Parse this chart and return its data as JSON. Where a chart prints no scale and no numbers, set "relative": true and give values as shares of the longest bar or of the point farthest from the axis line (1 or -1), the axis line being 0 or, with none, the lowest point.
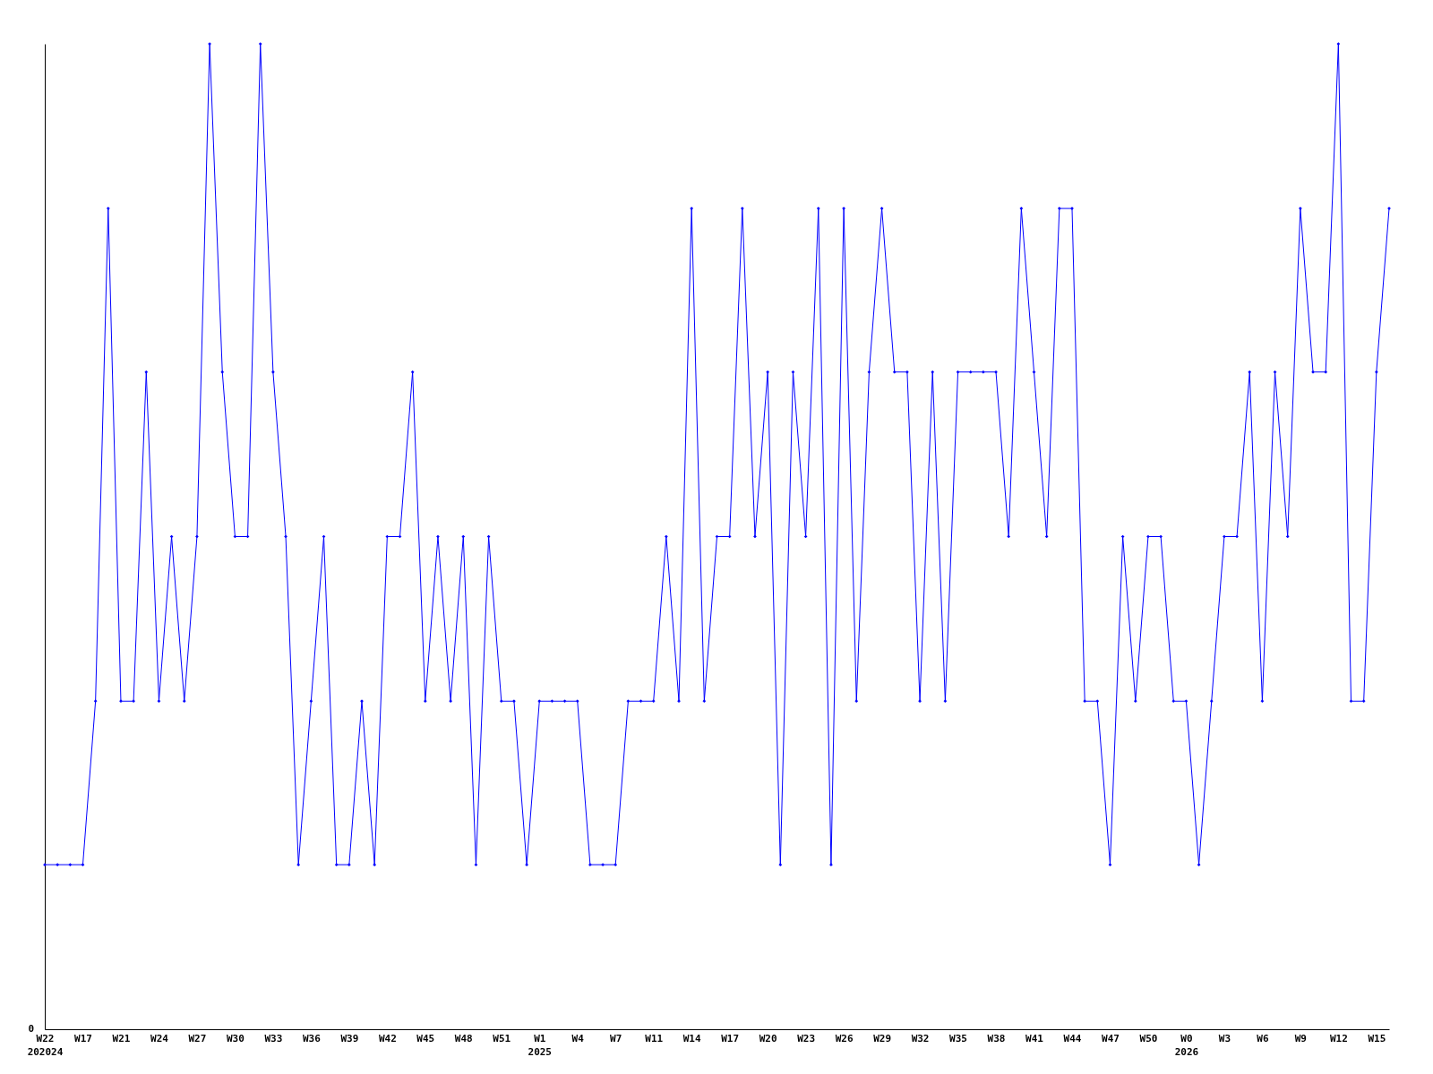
{
  "chart_data": {
    "type": "line",
    "relative": true,
    "marker": "diamond",
    "annotations": [
      "0"
    ],
    "categories": [
      "W22\n202024",
      null,
      null,
      "W17",
      null,
      null,
      "W21",
      null,
      null,
      "W24",
      null,
      null,
      "W27",
      null,
      null,
      "W30",
      null,
      null,
      "W33",
      null,
      null,
      "W36",
      null,
      null,
      "W39",
      null,
      null,
      "W42",
      null,
      null,
      "W45",
      null,
      null,
      "W48",
      null,
      null,
      "W51",
      null,
      null,
      "W1\n2025",
      null,
      null,
      "W4",
      null,
      null,
      "W7",
      null,
      null,
      "W11",
      null,
      null,
      "W14",
      null,
      null,
      "W17",
      null,
      null,
      "W20",
      null,
      null,
      "W23",
      null,
      null,
      "W26",
      null,
      null,
      "W29",
      null,
      null,
      "W32",
      null,
      null,
      "W35",
      null,
      null,
      "W38",
      null,
      null,
      "W41",
      null,
      null,
      "W44",
      null,
      null,
      "W47",
      null,
      null,
      "W50",
      null,
      null,
      "W0\n2026",
      null,
      null,
      "W3",
      null,
      null,
      "W6",
      null,
      null,
      "W9",
      null,
      null,
      "W12",
      null,
      null,
      "W15",
      null
    ],
    "series": [
      {
        "color": "#0000ff",
        "values": [
          0.167,
          0.167,
          0.167,
          0.167,
          0.333,
          0.833,
          0.333,
          0.333,
          0.667,
          0.333,
          0.5,
          0.333,
          0.5,
          1,
          0.667,
          0.5,
          0.5,
          1,
          0.667,
          0.5,
          0.167,
          0.333,
          0.5,
          0.167,
          0.167,
          0.333,
          0.167,
          0.5,
          0.5,
          0.667,
          0.333,
          0.5,
          0.333,
          0.5,
          0.167,
          0.5,
          0.333,
          0.333,
          0.167,
          0.333,
          0.333,
          0.333,
          0.333,
          0.167,
          0.167,
          0.167,
          0.333,
          0.333,
          0.333,
          0.5,
          0.333,
          0.833,
          0.333,
          0.5,
          0.5,
          0.833,
          0.5,
          0.667,
          0.167,
          0.667,
          0.5,
          0.833,
          0.167,
          0.833,
          0.333,
          0.667,
          0.833,
          0.667,
          0.667,
          0.333,
          0.667,
          0.333,
          0.667,
          0.667,
          0.667,
          0.667,
          0.5,
          0.833,
          0.667,
          0.5,
          0.833,
          0.833,
          0.333,
          0.333,
          0.167,
          0.5,
          0.333,
          0.5,
          0.5,
          0.333,
          0.333,
          0.167,
          0.333,
          0.5,
          0.5,
          0.667,
          0.333,
          0.667,
          0.5,
          0.833,
          0.667,
          0.667,
          1,
          0.333,
          0.333,
          0.667,
          0.833
        ]
      }
    ]
  }
}
